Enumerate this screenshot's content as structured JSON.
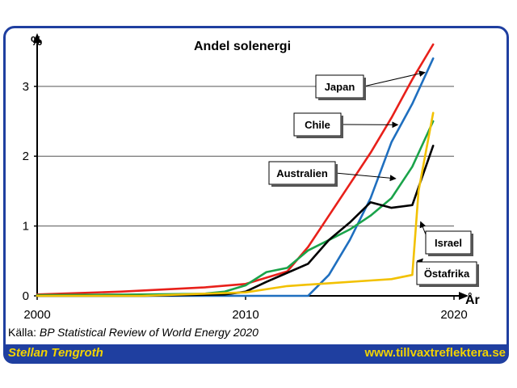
{
  "chart_data": {
    "type": "line",
    "title": "Andel solenergi",
    "ylabel": "%",
    "xlabel": "År",
    "xlim": [
      2000,
      2020
    ],
    "ylim": [
      0,
      3.6
    ],
    "xticks": [
      "2000",
      "2010",
      "2020"
    ],
    "yticks": [
      "0",
      "1",
      "2",
      "3"
    ],
    "grid": "horizontal",
    "series": [
      {
        "name": "Japan",
        "color": "#e8201a",
        "x": [
          2000,
          2002,
          2004,
          2006,
          2008,
          2010,
          2012,
          2013,
          2014,
          2015,
          2016,
          2017,
          2018,
          2019
        ],
        "y": [
          0.02,
          0.04,
          0.06,
          0.09,
          0.12,
          0.17,
          0.35,
          0.7,
          1.15,
          1.6,
          2.05,
          2.55,
          3.1,
          3.6
        ]
      },
      {
        "name": "Chile",
        "color": "#1f6fbf",
        "x": [
          2000,
          2005,
          2010,
          2013,
          2014,
          2015,
          2016,
          2017,
          2018,
          2019
        ],
        "y": [
          0.0,
          0.0,
          0.0,
          0.0,
          0.3,
          0.8,
          1.4,
          2.2,
          2.75,
          3.4
        ]
      },
      {
        "name": "Australien",
        "color": "#1aa34a",
        "x": [
          2000,
          2005,
          2008,
          2009,
          2010,
          2011,
          2012,
          2013,
          2014,
          2015,
          2016,
          2017,
          2018,
          2019
        ],
        "y": [
          0.01,
          0.02,
          0.03,
          0.06,
          0.15,
          0.34,
          0.4,
          0.65,
          0.8,
          0.95,
          1.15,
          1.4,
          1.85,
          2.5
        ]
      },
      {
        "name": "Israel",
        "color": "#000000",
        "x": [
          2000,
          2005,
          2009,
          2010,
          2011,
          2012,
          2013,
          2014,
          2015,
          2016,
          2017,
          2018,
          2019
        ],
        "y": [
          0.0,
          0.0,
          0.02,
          0.06,
          0.2,
          0.33,
          0.46,
          0.8,
          1.05,
          1.34,
          1.26,
          1.3,
          2.15
        ]
      },
      {
        "name": "Östafrika",
        "color": "#f2c100",
        "x": [
          2000,
          2005,
          2010,
          2012,
          2014,
          2016,
          2017,
          2018,
          2018.3,
          2019
        ],
        "y": [
          0.0,
          0.0,
          0.05,
          0.14,
          0.18,
          0.22,
          0.24,
          0.3,
          1.5,
          2.62
        ]
      }
    ],
    "annotations": [
      "Japan",
      "Chile",
      "Australien",
      "Israel",
      "Östafrika"
    ]
  },
  "source_prefix": "Källa: ",
  "source_text": "BP Statistical Review of World Energy 2020",
  "footer_author": "Stellan Tengroth",
  "footer_site": "www.tillvaxtreflektera.se"
}
